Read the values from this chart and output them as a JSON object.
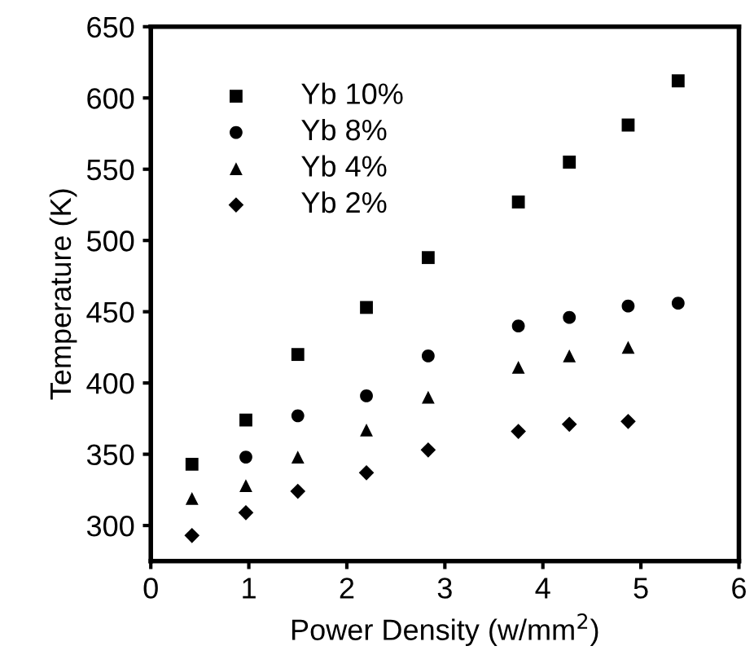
{
  "chart_data": {
    "type": "scatter",
    "xlabel": "Power Density (w/mm$^{2}$)",
    "ylabel": "Temperature (K)",
    "xlim": [
      0,
      6
    ],
    "ylim": [
      275,
      650
    ],
    "xticks": [
      0,
      1,
      2,
      3,
      4,
      5,
      6
    ],
    "yticks": [
      300,
      350,
      400,
      450,
      500,
      550,
      600,
      650
    ],
    "grid": false,
    "legend": "top left",
    "series": [
      {
        "name": "Yb 10%",
        "color": "#000000",
        "marker": "square",
        "x": [
          0.42,
          0.97,
          1.5,
          2.2,
          2.83,
          3.75,
          4.27,
          4.87,
          5.38
        ],
        "values": [
          343,
          374,
          420,
          453,
          488,
          527,
          555,
          581,
          612
        ]
      },
      {
        "name": "Yb 8%",
        "color": "#000000",
        "marker": "circle",
        "x": [
          0.97,
          1.5,
          2.2,
          2.83,
          3.75,
          4.27,
          4.87,
          5.38
        ],
        "values": [
          348,
          377,
          391,
          419,
          440,
          446,
          454,
          456
        ]
      },
      {
        "name": "Yb 4%",
        "color": "#000000",
        "marker": "triangle",
        "x": [
          0.42,
          0.97,
          1.5,
          2.2,
          2.83,
          3.75,
          4.27,
          4.87
        ],
        "values": [
          319,
          328,
          348,
          367,
          390,
          411,
          419,
          425
        ]
      },
      {
        "name": "Yb 2%",
        "color": "#000000",
        "marker": "diamond",
        "x": [
          0.42,
          0.97,
          1.5,
          2.2,
          2.83,
          3.75,
          4.27,
          4.87
        ],
        "values": [
          293,
          309,
          324,
          337,
          353,
          366,
          371,
          373
        ]
      }
    ]
  }
}
